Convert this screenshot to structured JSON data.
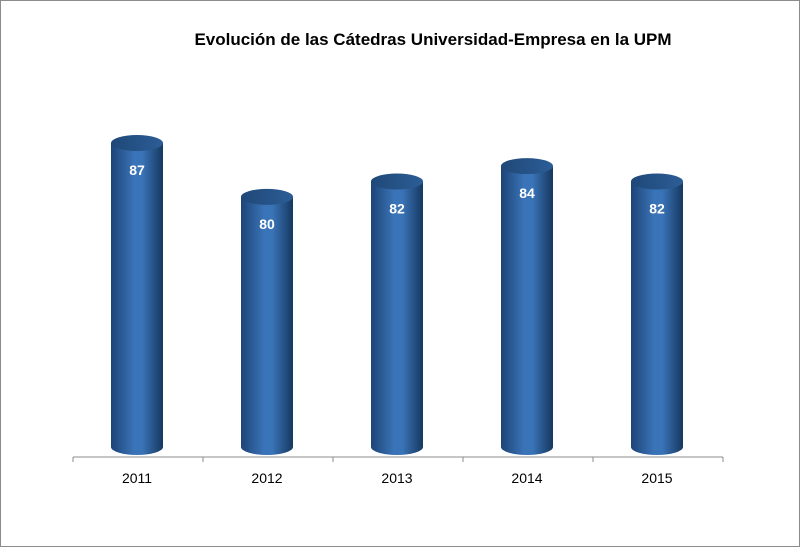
{
  "chart_data": {
    "type": "bar",
    "title": "Evolución de las Cátedras Universidad-Empresa en la UPM",
    "categories": [
      "2011",
      "2012",
      "2013",
      "2014",
      "2015"
    ],
    "values": [
      87,
      80,
      82,
      84,
      82
    ],
    "data_labels": [
      "87",
      "80",
      "82",
      "84",
      "82"
    ],
    "xlabel": "",
    "ylabel": "",
    "ylim": [
      47.5,
      87
    ],
    "grid": false,
    "legend": "none",
    "bar_style": "3d-cylinder",
    "color": "#2E63A4"
  }
}
